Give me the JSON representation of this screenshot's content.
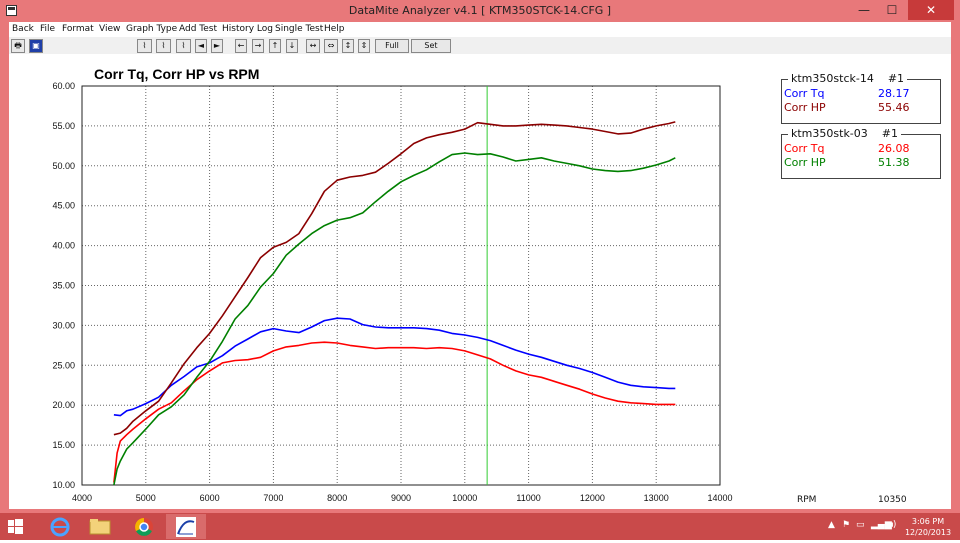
{
  "window": {
    "title": "DataMite Analyzer v4.1  [ KTM350STCK-14.CFG ]",
    "minimize": "—",
    "maximize": "☐",
    "close": "✕"
  },
  "menu": [
    "Back",
    "File",
    "Format",
    "View",
    "Graph Type",
    "Add Test",
    "History Log",
    "Single Test",
    "Help"
  ],
  "toolbar": {
    "full_view": "Full View",
    "set_scales": "Set Scales"
  },
  "legends": [
    {
      "test": "ktm350stck-14",
      "run": "#1",
      "entries": [
        {
          "name": "Corr Tq",
          "value": "28.17",
          "color": "#0000ff"
        },
        {
          "name": "Corr HP",
          "value": "55.46",
          "color": "#8b0000"
        }
      ]
    },
    {
      "test": "ktm350stk-03",
      "run": "#1",
      "entries": [
        {
          "name": "Corr Tq",
          "value": "26.08",
          "color": "#ff0000"
        },
        {
          "name": "Corr HP",
          "value": "51.38",
          "color": "#008000"
        }
      ]
    }
  ],
  "cursor": {
    "label": "RPM",
    "value": "10350"
  },
  "taskbar": {
    "time": "3:06 PM",
    "date": "12/20/2013"
  },
  "chart_data": {
    "type": "line",
    "title": "Corr Tq, Corr HP vs RPM",
    "xlim": [
      4000,
      14000
    ],
    "ylim": [
      10,
      60
    ],
    "x_ticks": [
      "4000",
      "5000",
      "6000",
      "7000",
      "8000",
      "9000",
      "10000",
      "11000",
      "12000",
      "13000",
      "14000"
    ],
    "y_ticks": [
      "10.00",
      "15.00",
      "20.00",
      "25.00",
      "30.00",
      "35.00",
      "40.00",
      "45.00",
      "50.00",
      "55.00",
      "60.00"
    ],
    "grid": true,
    "cursor_rpm": 10350,
    "series": [
      {
        "name": "Corr Tq",
        "color": "#0000ff",
        "x": [
          4500,
          4600,
          4700,
          4800,
          5000,
          5200,
          5400,
          5600,
          5800,
          6000,
          6200,
          6400,
          6600,
          6800,
          7000,
          7200,
          7400,
          7600,
          7800,
          8000,
          8200,
          8400,
          8600,
          8800,
          9000,
          9200,
          9400,
          9600,
          9800,
          10000,
          10200,
          10400,
          10600,
          10800,
          11000,
          11200,
          11400,
          11600,
          11800,
          12000,
          12200,
          12400,
          12600,
          12800,
          13000,
          13200,
          13300
        ],
        "y": [
          18.8,
          18.7,
          19.3,
          19.5,
          20.2,
          21.0,
          22.5,
          23.6,
          24.8,
          25.3,
          26.2,
          27.4,
          28.3,
          29.2,
          29.6,
          29.3,
          29.1,
          29.8,
          30.6,
          30.9,
          30.8,
          30.1,
          29.8,
          29.7,
          29.7,
          29.7,
          29.6,
          29.4,
          29.0,
          28.8,
          28.5,
          28.1,
          27.5,
          26.9,
          26.4,
          26.0,
          25.5,
          25.0,
          24.6,
          24.1,
          23.5,
          22.9,
          22.5,
          22.3,
          22.2,
          22.1,
          22.1
        ]
      },
      {
        "name": "Corr HP",
        "color": "#8b0000",
        "x": [
          4500,
          4600,
          4700,
          4800,
          5000,
          5200,
          5400,
          5600,
          5800,
          6000,
          6200,
          6400,
          6600,
          6800,
          7000,
          7200,
          7400,
          7600,
          7800,
          8000,
          8200,
          8400,
          8600,
          8800,
          9000,
          9200,
          9400,
          9600,
          9800,
          10000,
          10200,
          10400,
          10600,
          10800,
          11000,
          11200,
          11400,
          11600,
          11800,
          12000,
          12200,
          12400,
          12600,
          12800,
          13000,
          13200,
          13300
        ],
        "y": [
          16.3,
          16.5,
          17.1,
          18.0,
          19.3,
          20.5,
          22.8,
          25.2,
          27.2,
          29.0,
          31.2,
          33.6,
          36.0,
          38.5,
          39.8,
          40.4,
          41.5,
          44.0,
          46.8,
          48.2,
          48.6,
          48.8,
          49.2,
          50.3,
          51.5,
          52.8,
          53.5,
          53.9,
          54.2,
          54.6,
          55.4,
          55.2,
          55.0,
          55.0,
          55.1,
          55.2,
          55.1,
          55.0,
          54.8,
          54.6,
          54.3,
          54.0,
          54.1,
          54.6,
          55.0,
          55.3,
          55.5
        ]
      },
      {
        "name": "Corr Tq",
        "color": "#ff0000",
        "x": [
          4500,
          4550,
          4600,
          4700,
          4800,
          5000,
          5200,
          5400,
          5600,
          5800,
          6000,
          6200,
          6400,
          6600,
          6800,
          7000,
          7200,
          7400,
          7600,
          7800,
          8000,
          8200,
          8400,
          8600,
          8800,
          9000,
          9200,
          9400,
          9600,
          9800,
          10000,
          10200,
          10400,
          10600,
          10800,
          11000,
          11200,
          11400,
          11600,
          11800,
          12000,
          12200,
          12400,
          12600,
          12800,
          13000,
          13200,
          13300
        ],
        "y": [
          10.3,
          14.0,
          15.5,
          16.3,
          17.0,
          18.3,
          19.5,
          20.3,
          21.8,
          23.2,
          24.3,
          25.3,
          25.6,
          25.7,
          26.0,
          26.8,
          27.3,
          27.5,
          27.8,
          27.9,
          27.8,
          27.5,
          27.3,
          27.1,
          27.2,
          27.2,
          27.2,
          27.1,
          27.2,
          27.1,
          26.8,
          26.3,
          25.8,
          25.0,
          24.3,
          23.8,
          23.5,
          23.0,
          22.5,
          22.0,
          21.4,
          20.9,
          20.5,
          20.3,
          20.2,
          20.1,
          20.1,
          20.1
        ]
      },
      {
        "name": "Corr HP",
        "color": "#008000",
        "x": [
          4500,
          4550,
          4600,
          4700,
          4800,
          5000,
          5200,
          5400,
          5600,
          5800,
          6000,
          6200,
          6400,
          6600,
          6800,
          7000,
          7200,
          7400,
          7600,
          7800,
          8000,
          8200,
          8400,
          8600,
          8800,
          9000,
          9200,
          9400,
          9600,
          9800,
          10000,
          10200,
          10400,
          10600,
          10800,
          11000,
          11200,
          11400,
          11600,
          11800,
          12000,
          12200,
          12400,
          12600,
          12800,
          13000,
          13200,
          13300
        ],
        "y": [
          10.0,
          12.0,
          13.0,
          14.5,
          15.3,
          17.0,
          18.8,
          19.8,
          21.3,
          23.5,
          25.5,
          28.0,
          30.8,
          32.5,
          34.8,
          36.5,
          38.8,
          40.2,
          41.5,
          42.5,
          43.2,
          43.5,
          44.1,
          45.5,
          46.8,
          48.0,
          48.8,
          49.5,
          50.5,
          51.4,
          51.6,
          51.4,
          51.5,
          51.1,
          50.6,
          50.8,
          51.0,
          50.6,
          50.3,
          50.0,
          49.6,
          49.4,
          49.3,
          49.4,
          49.7,
          50.1,
          50.6,
          51.0
        ]
      }
    ]
  }
}
